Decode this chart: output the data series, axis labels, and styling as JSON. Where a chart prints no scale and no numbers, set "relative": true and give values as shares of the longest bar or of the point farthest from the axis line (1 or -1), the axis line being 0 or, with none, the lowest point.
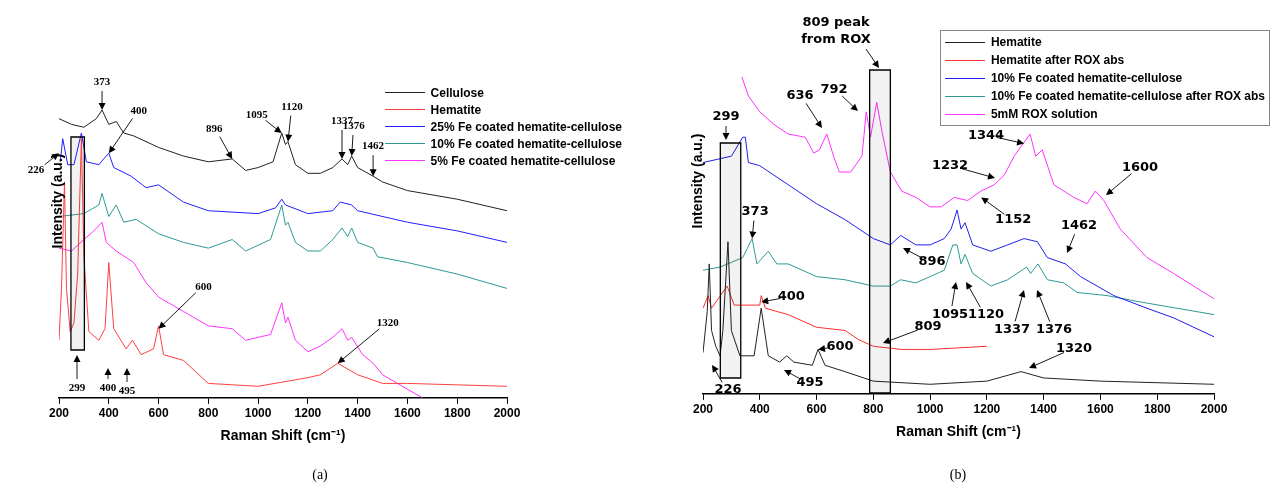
{
  "chart_data": [
    {
      "type": "line",
      "relative": true,
      "xlabel": "Raman Shift (cm⁻¹)",
      "ylabel": "Intensity (a.u.)",
      "xlim": [
        200,
        2000
      ],
      "xticks": [
        200,
        400,
        600,
        800,
        1000,
        1200,
        1400,
        1600,
        1800,
        2000
      ],
      "grid": false,
      "legend": "top right",
      "series": [
        {
          "name": "Cellulose",
          "color": "#222222",
          "x": [
            200,
            250,
            300,
            350,
            373,
            400,
            430,
            460,
            500,
            600,
            700,
            800,
            896,
            950,
            1000,
            1060,
            1095,
            1110,
            1120,
            1150,
            1200,
            1250,
            1300,
            1337,
            1360,
            1376,
            1400,
            1462,
            1500,
            1600,
            1800,
            2000
          ],
          "values": [
            0.97,
            0.95,
            0.94,
            0.97,
            1.0,
            0.95,
            0.96,
            0.92,
            0.91,
            0.87,
            0.84,
            0.82,
            0.83,
            0.79,
            0.8,
            0.82,
            0.92,
            0.88,
            0.89,
            0.81,
            0.78,
            0.78,
            0.8,
            0.83,
            0.81,
            0.84,
            0.8,
            0.77,
            0.75,
            0.72,
            0.69,
            0.65
          ]
        },
        {
          "name": "Hematite",
          "color": "#ff4040",
          "x": [
            200,
            210,
            222,
            230,
            245,
            260,
            275,
            290,
            300,
            320,
            360,
            385,
            400,
            420,
            470,
            495,
            530,
            580,
            600,
            620,
            700,
            750,
            800,
            1000,
            1200,
            1250,
            1320,
            1400,
            1500,
            1600,
            2000
          ],
          "values": [
            0.2,
            0.38,
            0.75,
            0.38,
            0.23,
            0.26,
            0.43,
            0.9,
            0.49,
            0.23,
            0.2,
            0.24,
            0.47,
            0.24,
            0.17,
            0.2,
            0.15,
            0.17,
            0.25,
            0.15,
            0.13,
            0.09,
            0.05,
            0.04,
            0.07,
            0.08,
            0.12,
            0.08,
            0.05,
            0.05,
            0.04
          ]
        },
        {
          "name": "25% Fe coated hematite-cellulose",
          "color": "#2020ff",
          "x": [
            205,
            215,
            235,
            260,
            290,
            310,
            360,
            400,
            420,
            490,
            550,
            600,
            700,
            800,
            1000,
            1070,
            1095,
            1110,
            1200,
            1300,
            1330,
            1376,
            1400,
            1600,
            1800,
            2000
          ],
          "values": [
            0.82,
            0.9,
            0.81,
            0.81,
            0.92,
            0.82,
            0.81,
            0.85,
            0.8,
            0.77,
            0.73,
            0.74,
            0.68,
            0.65,
            0.64,
            0.66,
            0.69,
            0.67,
            0.64,
            0.65,
            0.68,
            0.67,
            0.65,
            0.61,
            0.58,
            0.54
          ]
        },
        {
          "name": "10% Fe coated hematite-cellulose",
          "color": "#2e9a96",
          "x": [
            200,
            300,
            360,
            373,
            400,
            430,
            460,
            510,
            600,
            700,
            800,
            896,
            950,
            1050,
            1095,
            1110,
            1120,
            1150,
            1200,
            1250,
            1300,
            1337,
            1360,
            1376,
            1400,
            1462,
            1480,
            1600,
            1800,
            2000
          ],
          "values": [
            0.63,
            0.64,
            0.67,
            0.71,
            0.63,
            0.67,
            0.61,
            0.62,
            0.57,
            0.54,
            0.52,
            0.55,
            0.51,
            0.55,
            0.67,
            0.6,
            0.61,
            0.54,
            0.51,
            0.51,
            0.55,
            0.59,
            0.56,
            0.59,
            0.54,
            0.52,
            0.49,
            0.47,
            0.43,
            0.38
          ]
        },
        {
          "name": "5% Fe coated hematite-cellulose",
          "color": "#ff33ff",
          "x": [
            200,
            250,
            300,
            340,
            373,
            390,
            430,
            500,
            550,
            600,
            700,
            800,
            896,
            950,
            1050,
            1095,
            1110,
            1120,
            1150,
            1200,
            1250,
            1300,
            1337,
            1360,
            1376,
            1420,
            1462,
            1500,
            1600,
            1660
          ],
          "values": [
            0.52,
            0.51,
            0.55,
            0.58,
            0.61,
            0.54,
            0.51,
            0.47,
            0.4,
            0.35,
            0.3,
            0.25,
            0.24,
            0.2,
            0.22,
            0.33,
            0.26,
            0.28,
            0.2,
            0.16,
            0.18,
            0.21,
            0.24,
            0.2,
            0.21,
            0.15,
            0.12,
            0.08,
            0.03,
            0.0
          ]
        }
      ],
      "bands": [
        {
          "axis": "x",
          "from": 248,
          "to": 302
        }
      ],
      "annotations": [
        {
          "text": "226",
          "x": 200,
          "y": 0.85
        },
        {
          "text": "373",
          "x": 373,
          "y": 1.0
        },
        {
          "text": "400",
          "x": 400,
          "y": 0.85
        },
        {
          "text": "896",
          "x": 896,
          "y": 0.83
        },
        {
          "text": "1095",
          "x": 1095,
          "y": 0.92
        },
        {
          "text": "1120",
          "x": 1120,
          "y": 0.89
        },
        {
          "text": "1337",
          "x": 1337,
          "y": 0.83
        },
        {
          "text": "1376",
          "x": 1376,
          "y": 0.84
        },
        {
          "text": "1462",
          "x": 1462,
          "y": 0.77
        },
        "299",
        "400",
        "495",
        {
          "text": "600",
          "x": 600,
          "y": 0.24
        },
        {
          "text": "1320",
          "x": 1320,
          "y": 0.12
        },
        "(a)"
      ]
    },
    {
      "type": "line",
      "relative": true,
      "xlabel": "Raman Shift (cm⁻¹)",
      "ylabel": "Intensity (a.u.)",
      "xlim": [
        200,
        2000
      ],
      "xticks": [
        200,
        400,
        600,
        800,
        1000,
        1200,
        1400,
        1600,
        1800,
        2000
      ],
      "grid": false,
      "legend": "top right",
      "series": [
        {
          "name": "Hematite",
          "color": "#222222",
          "x": [
            200,
            215,
            222,
            230,
            245,
            260,
            270,
            288,
            300,
            330,
            380,
            405,
            430,
            470,
            495,
            520,
            585,
            605,
            630,
            700,
            800,
            1000,
            1200,
            1320,
            1400,
            1600,
            2000
          ],
          "values": [
            0.13,
            0.26,
            0.41,
            0.2,
            0.15,
            0.12,
            0.2,
            0.48,
            0.2,
            0.12,
            0.12,
            0.27,
            0.12,
            0.1,
            0.12,
            0.1,
            0.09,
            0.14,
            0.09,
            0.07,
            0.04,
            0.03,
            0.04,
            0.07,
            0.05,
            0.04,
            0.03
          ]
        },
        {
          "name": "Hematite after ROX abs",
          "color": "#ff3030",
          "x": [
            200,
            218,
            230,
            285,
            310,
            400,
            405,
            420,
            500,
            600,
            700,
            750,
            800,
            900,
            1000,
            1200
          ],
          "values": [
            0.27,
            0.31,
            0.27,
            0.34,
            0.28,
            0.28,
            0.31,
            0.27,
            0.25,
            0.21,
            0.2,
            0.17,
            0.15,
            0.14,
            0.14,
            0.15
          ]
        },
        {
          "name": "10% Fe coated hematite-cellulose",
          "color": "#2020ee",
          "x": [
            200,
            250,
            300,
            340,
            349,
            360,
            400,
            450,
            500,
            600,
            700,
            800,
            860,
            896,
            950,
            1000,
            1050,
            1074,
            1095,
            1109,
            1123,
            1150,
            1214,
            1273,
            1331,
            1378,
            1413,
            1477,
            1530,
            1647,
            1764,
            1857,
            2000
          ],
          "values": [
            0.73,
            0.74,
            0.75,
            0.81,
            0.81,
            0.73,
            0.72,
            0.69,
            0.66,
            0.6,
            0.55,
            0.49,
            0.47,
            0.5,
            0.47,
            0.47,
            0.49,
            0.52,
            0.58,
            0.52,
            0.54,
            0.47,
            0.45,
            0.47,
            0.49,
            0.48,
            0.43,
            0.41,
            0.37,
            0.31,
            0.27,
            0.24,
            0.18
          ]
        },
        {
          "name": "10% Fe coated hematite-cellulose after ROX abs",
          "color": "#2e9a96",
          "x": [
            200,
            260,
            340,
            373,
            390,
            430,
            460,
            500,
            600,
            700,
            800,
            860,
            896,
            950,
            1000,
            1050,
            1080,
            1095,
            1109,
            1123,
            1150,
            1214,
            1273,
            1340,
            1354,
            1380,
            1413,
            1471,
            1518,
            1623,
            1740,
            2000
          ],
          "values": [
            0.39,
            0.4,
            0.43,
            0.49,
            0.41,
            0.45,
            0.41,
            0.41,
            0.37,
            0.36,
            0.34,
            0.34,
            0.36,
            0.35,
            0.37,
            0.39,
            0.47,
            0.47,
            0.41,
            0.44,
            0.38,
            0.34,
            0.36,
            0.4,
            0.38,
            0.41,
            0.36,
            0.35,
            0.32,
            0.31,
            0.29,
            0.25
          ]
        },
        {
          "name": "5mM ROX solution",
          "color": "#ff33ff",
          "x": [
            337,
            360,
            400,
            450,
            500,
            560,
            590,
            610,
            636,
            660,
            680,
            720,
            760,
            775,
            790,
            812,
            830,
            860,
            900,
            950,
            1000,
            1039,
            1085,
            1132,
            1179,
            1226,
            1261,
            1296,
            1352,
            1372,
            1395,
            1436,
            1506,
            1553,
            1582,
            1612,
            1670,
            1764,
            1857,
            2000
          ],
          "values": [
            1.0,
            0.94,
            0.89,
            0.85,
            0.82,
            0.81,
            0.76,
            0.77,
            0.82,
            0.75,
            0.7,
            0.7,
            0.75,
            0.89,
            0.81,
            0.92,
            0.83,
            0.7,
            0.64,
            0.62,
            0.59,
            0.59,
            0.62,
            0.61,
            0.64,
            0.66,
            0.69,
            0.75,
            0.82,
            0.75,
            0.77,
            0.66,
            0.62,
            0.6,
            0.64,
            0.61,
            0.52,
            0.43,
            0.38,
            0.3
          ]
        }
      ],
      "bands": [
        {
          "axis": "x",
          "from": 261,
          "to": 333
        },
        {
          "axis": "x",
          "from": 787,
          "to": 860,
          "label": "809 peak from ROX"
        }
      ],
      "annotations": [
        "299",
        {
          "text": "373",
          "x": 373,
          "y": 0.49
        },
        {
          "text": "400",
          "x": 405,
          "y": 0.29
        },
        "495",
        {
          "text": "600",
          "x": 605,
          "y": 0.14
        },
        "226",
        "636",
        "792",
        "809",
        "896",
        "1095",
        "1120",
        "1337",
        "1376",
        "1462",
        {
          "text": "1344",
          "x": 1331,
          "y": 0.79
        },
        "1232",
        {
          "text": "1152",
          "x": 1180,
          "y": 0.62
        },
        "1600",
        "1320",
        "(b)"
      ]
    }
  ]
}
